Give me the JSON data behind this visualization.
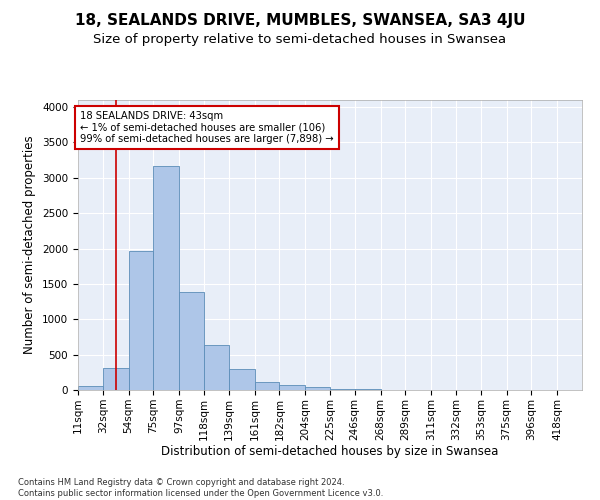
{
  "title1": "18, SEALANDS DRIVE, MUMBLES, SWANSEA, SA3 4JU",
  "title2": "Size of property relative to semi-detached houses in Swansea",
  "xlabel": "Distribution of semi-detached houses by size in Swansea",
  "ylabel": "Number of semi-detached properties",
  "footnote": "Contains HM Land Registry data © Crown copyright and database right 2024.\nContains public sector information licensed under the Open Government Licence v3.0.",
  "bar_edges": [
    11,
    32,
    54,
    75,
    97,
    118,
    139,
    161,
    182,
    204,
    225,
    246,
    268,
    289,
    311,
    332,
    353,
    375,
    396,
    418,
    439
  ],
  "bar_heights": [
    50,
    310,
    1970,
    3160,
    1390,
    640,
    300,
    110,
    65,
    45,
    20,
    10,
    5,
    3,
    2,
    2,
    1,
    1,
    1,
    1
  ],
  "bar_color": "#aec6e8",
  "bar_edge_color": "#5b8db8",
  "property_size": 43,
  "property_label": "18 SEALANDS DRIVE: 43sqm",
  "annotation_line1": "← 1% of semi-detached houses are smaller (106)",
  "annotation_line2": "99% of semi-detached houses are larger (7,898) →",
  "vline_color": "#cc0000",
  "annotation_box_color": "#cc0000",
  "ylim": [
    0,
    4100
  ],
  "yticks": [
    0,
    500,
    1000,
    1500,
    2000,
    2500,
    3000,
    3500,
    4000
  ],
  "bg_color": "#e8eef8",
  "title1_fontsize": 11,
  "title2_fontsize": 9.5,
  "axis_label_fontsize": 8.5,
  "tick_fontsize": 7.5,
  "footnote_fontsize": 6.0
}
